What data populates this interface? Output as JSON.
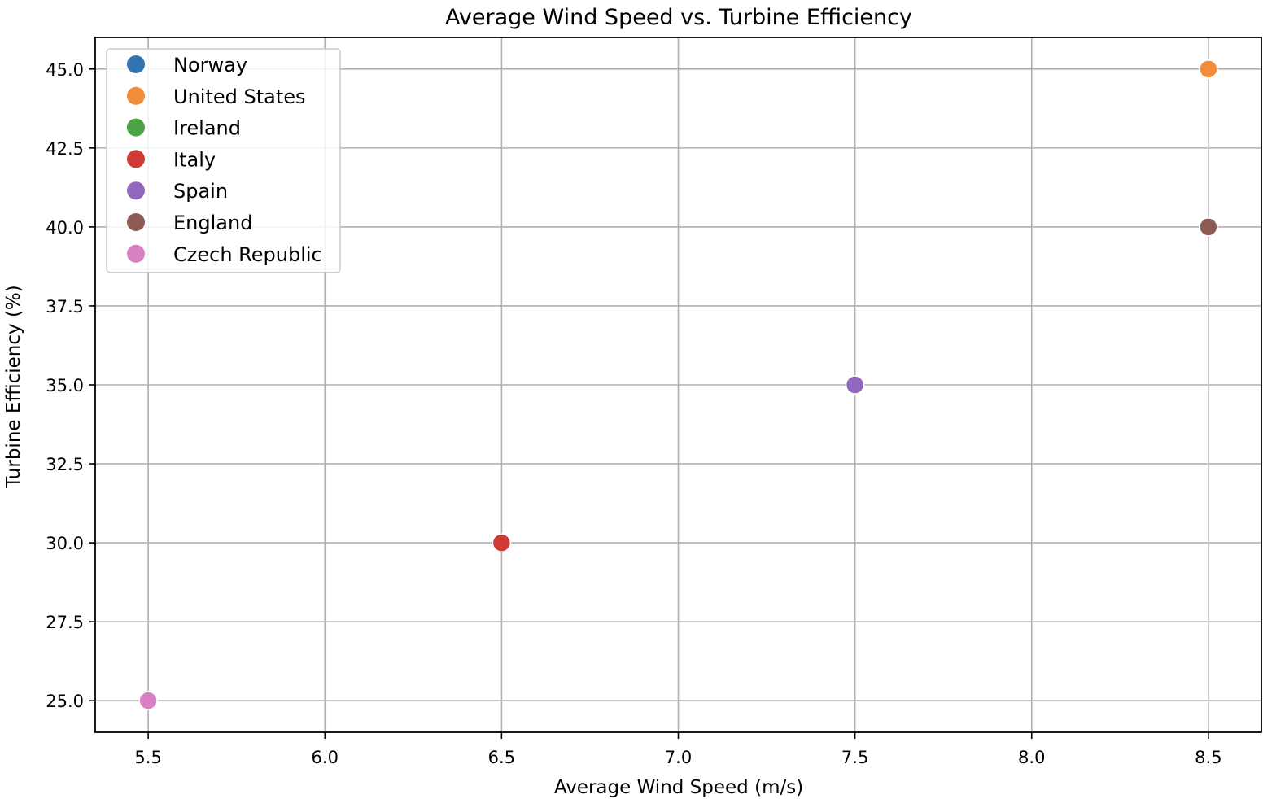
{
  "chart_data": {
    "type": "scatter",
    "title": "Average Wind Speed vs. Turbine Efficiency",
    "xlabel": "Average Wind Speed (m/s)",
    "ylabel": "Turbine Efficiency (%)",
    "xlim": [
      5.35,
      8.65
    ],
    "ylim": [
      24.0,
      46.0
    ],
    "xticks": [
      5.5,
      6.0,
      6.5,
      7.0,
      7.5,
      8.0,
      8.5
    ],
    "xtick_labels": [
      "5.5",
      "6.0",
      "6.5",
      "7.0",
      "7.5",
      "8.0",
      "8.5"
    ],
    "yticks": [
      25.0,
      27.5,
      30.0,
      32.5,
      35.0,
      37.5,
      40.0,
      42.5,
      45.0
    ],
    "ytick_labels": [
      "25.0",
      "27.5",
      "30.0",
      "32.5",
      "35.0",
      "37.5",
      "40.0",
      "42.5",
      "45.0"
    ],
    "grid": true,
    "legend_position": "top-left",
    "series": [
      {
        "name": "Norway",
        "color": "#3274b0",
        "x": [
          8.5
        ],
        "y": [
          45.0
        ]
      },
      {
        "name": "United States",
        "color": "#f28c38",
        "x": [
          8.5
        ],
        "y": [
          45.0
        ]
      },
      {
        "name": "Ireland",
        "color": "#4aa443",
        "x": [
          8.5
        ],
        "y": [
          40.0
        ]
      },
      {
        "name": "Italy",
        "color": "#cf3a35",
        "x": [
          6.5
        ],
        "y": [
          30.0
        ]
      },
      {
        "name": "Spain",
        "color": "#9167be",
        "x": [
          7.5
        ],
        "y": [
          35.0
        ]
      },
      {
        "name": "England",
        "color": "#8c5c52",
        "x": [
          8.5
        ],
        "y": [
          40.0
        ]
      },
      {
        "name": "Czech Republic",
        "color": "#d97fc4",
        "x": [
          5.5
        ],
        "y": [
          25.0
        ]
      }
    ]
  }
}
